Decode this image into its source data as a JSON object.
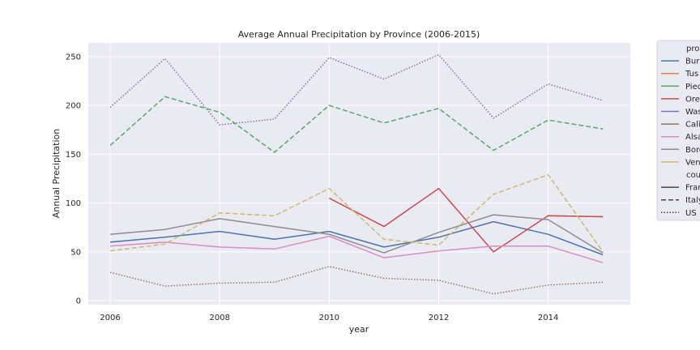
{
  "chart_data": {
    "type": "line",
    "title": "Average Annual Precipitation by Province (2006-2015)",
    "xlabel": "year",
    "ylabel": "Annual Precipitation",
    "xlim": [
      2005.6,
      2015.5
    ],
    "ylim": [
      -4,
      264
    ],
    "xticks": [
      2006,
      2008,
      2010,
      2012,
      2014
    ],
    "yticks": [
      0,
      50,
      100,
      150,
      200,
      250
    ],
    "grid": true,
    "legend_position": "outside-right",
    "legend_hue_title": "prov",
    "legend_style_title": "cou",
    "styles": [
      {
        "name": "Fran",
        "dash": "solid"
      },
      {
        "name": "Italy",
        "dash": "dashed"
      },
      {
        "name": "US",
        "dash": "dotted"
      }
    ],
    "series": [
      {
        "name": "Bur",
        "color": "#4c72b0",
        "dash": "solid",
        "x": [
          2006,
          2007,
          2008,
          2009,
          2010,
          2011,
          2012,
          2013,
          2014,
          2015
        ],
        "y": [
          60,
          65,
          71,
          63,
          71,
          55,
          65,
          81,
          68,
          47
        ]
      },
      {
        "name": "Tus",
        "color": "#dd8452",
        "dash": "dashed",
        "x": [
          2014,
          2015
        ],
        "y": [
          87,
          86
        ]
      },
      {
        "name": "Pied",
        "color": "#55a868",
        "dash": "dashed",
        "x": [
          2006,
          2007,
          2008,
          2009,
          2010,
          2011,
          2012,
          2013,
          2014,
          2015
        ],
        "y": [
          159,
          209,
          193,
          152,
          200,
          182,
          197,
          154,
          185,
          176
        ]
      },
      {
        "name": "Ore",
        "color": "#c44e52",
        "dash": "solid",
        "x": [
          2010,
          2011,
          2012,
          2013,
          2014,
          2015
        ],
        "y": [
          105,
          76,
          115,
          50,
          87,
          86
        ]
      },
      {
        "name": "Was",
        "color": "#8172b3",
        "dash": "dotted",
        "x": [
          2006,
          2007,
          2008,
          2009,
          2010,
          2011,
          2012,
          2013,
          2014,
          2015
        ],
        "y": [
          198,
          248,
          180,
          186,
          249,
          227,
          252,
          187,
          222,
          205
        ]
      },
      {
        "name": "Cali",
        "color": "#937860",
        "dash": "dotted",
        "x": [
          2006,
          2007,
          2008,
          2009,
          2010,
          2011,
          2012,
          2013,
          2014,
          2015
        ],
        "y": [
          29,
          15,
          18,
          19,
          35,
          23,
          21,
          7,
          16,
          19
        ]
      },
      {
        "name": "Alsa",
        "color": "#da8bc3",
        "dash": "solid",
        "x": [
          2006,
          2007,
          2008,
          2009,
          2010,
          2011,
          2012,
          2013,
          2014,
          2015
        ],
        "y": [
          56,
          60,
          55,
          53,
          66,
          44,
          51,
          56,
          56,
          39
        ]
      },
      {
        "name": "Bord",
        "color": "#8c8c8c",
        "dash": "solid",
        "x": [
          2006,
          2007,
          2008,
          2009,
          2010,
          2011,
          2012,
          2013,
          2014,
          2015
        ],
        "y": [
          68,
          73,
          84,
          76,
          68,
          49,
          70,
          88,
          83,
          49
        ]
      },
      {
        "name": "Ven",
        "color": "#ccb974",
        "dash": "dashed",
        "x": [
          2006,
          2007,
          2008,
          2009,
          2010,
          2011,
          2012,
          2013,
          2014,
          2015
        ],
        "y": [
          51,
          58,
          90,
          87,
          115,
          63,
          57,
          109,
          129,
          50
        ]
      }
    ]
  }
}
